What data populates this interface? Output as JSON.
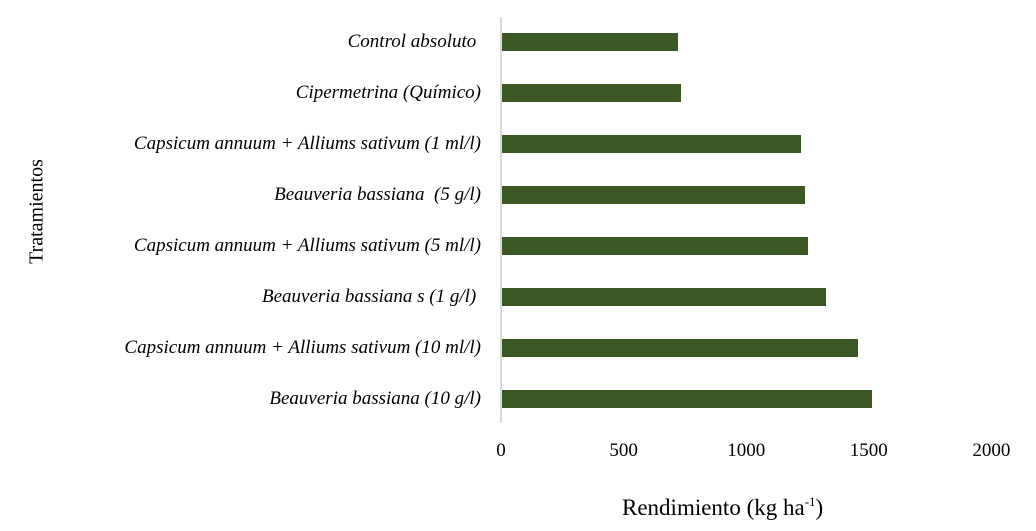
{
  "chart_data": {
    "type": "bar",
    "orientation": "horizontal",
    "title": "",
    "xlabel": "Rendimiento (kg ha-1)",
    "xlabel_main": "Rendimiento (kg ha",
    "xlabel_sup": "-1",
    "xlabel_close": ")",
    "ylabel": "Tratamientos",
    "xlim": [
      0,
      2000
    ],
    "xticks": [
      "0",
      "500",
      "1000",
      "1500",
      "2000"
    ],
    "grid": false,
    "legend": null,
    "bar_color": "#3b5824",
    "categories": [
      "Control absoluto ",
      "Cipermetrina (Químico)",
      "Capsicum annuum + Alliums sativum (1 ml/l)",
      "Beauveria bassiana  (5 g/l)",
      "Capsicum annuum + Alliums sativum (5 ml/l)",
      "Beauveria bassiana s (1 g/l) ",
      "Capsicum annuum + Alliums sativum (10 ml/l)",
      "Beauveria bassiana (10 g/l)"
    ],
    "values": [
      718,
      731,
      1224,
      1241,
      1253,
      1327,
      1457,
      1514
    ]
  }
}
